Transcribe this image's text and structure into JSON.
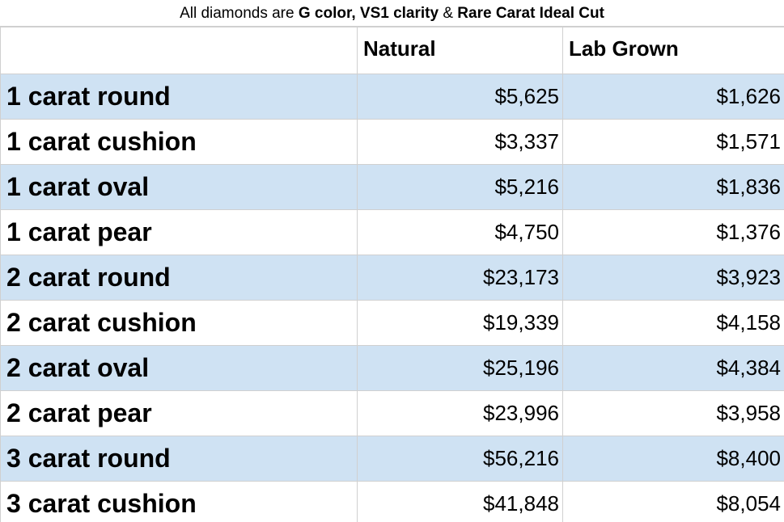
{
  "caption": {
    "prefix": "All diamonds are ",
    "color": "G color",
    "sep1": ", ",
    "clarity": "VS1 clarity",
    "sep2": " & ",
    "cut": "Rare Carat Ideal Cut"
  },
  "table": {
    "headers": [
      "",
      "Natural",
      "Lab Grown"
    ],
    "rows": [
      {
        "label": "1 carat round",
        "natural": "$5,625",
        "lab": "$1,626"
      },
      {
        "label": "1 carat cushion",
        "natural": "$3,337",
        "lab": "$1,571"
      },
      {
        "label": "1 carat oval",
        "natural": "$5,216",
        "lab": "$1,836"
      },
      {
        "label": "1 carat pear",
        "natural": "$4,750",
        "lab": "$1,376"
      },
      {
        "label": "2 carat round",
        "natural": "$23,173",
        "lab": "$3,923"
      },
      {
        "label": "2 carat cushion",
        "natural": "$19,339",
        "lab": "$4,158"
      },
      {
        "label": "2 carat oval",
        "natural": "$25,196",
        "lab": "$4,384"
      },
      {
        "label": "2 carat pear",
        "natural": "$23,996",
        "lab": "$3,958"
      },
      {
        "label": "3 carat round",
        "natural": "$56,216",
        "lab": "$8,400"
      },
      {
        "label": "3 carat cushion",
        "natural": "$41,848",
        "lab": "$8,054"
      }
    ]
  },
  "colors": {
    "shaded_row": "#cfe2f3",
    "grid": "#d0d0d0"
  }
}
